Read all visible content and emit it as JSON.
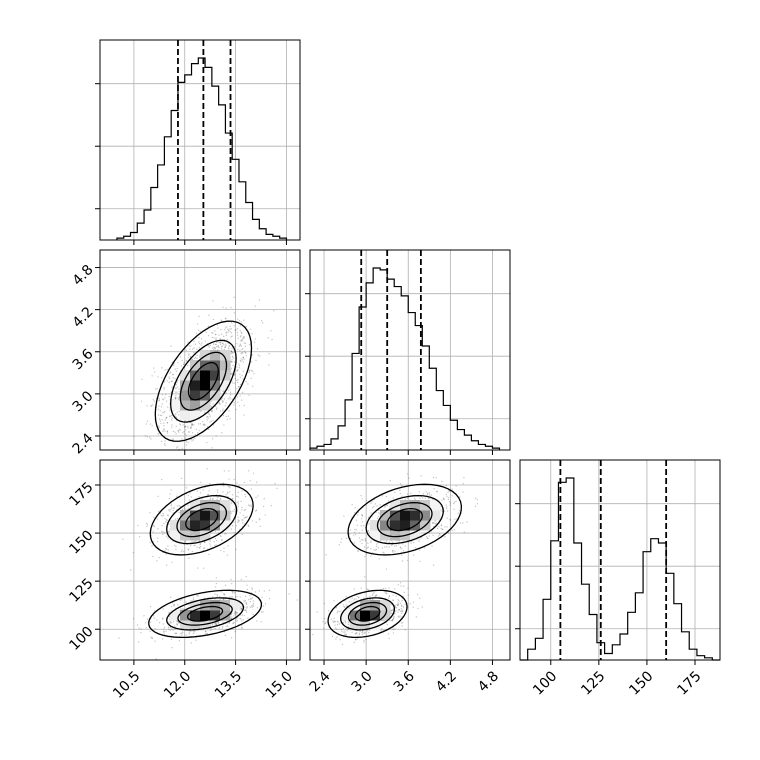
{
  "chart_data": {
    "type": "corner",
    "title": "",
    "grid": true,
    "parameters": [
      {
        "ticks": [
          10.5,
          12.0,
          13.5,
          15.0
        ],
        "tick_labels": [
          "10.5",
          "12.0",
          "13.5",
          "15.0"
        ],
        "range": [
          9.5,
          15.4
        ],
        "quantiles": [
          11.8,
          12.55,
          13.35
        ]
      },
      {
        "ticks": [
          2.4,
          3.0,
          3.6,
          4.2,
          4.8
        ],
        "tick_labels": [
          "2.4",
          "3.0",
          "3.6",
          "4.2",
          "4.8"
        ],
        "range": [
          2.2,
          5.05
        ],
        "quantiles": [
          2.93,
          3.3,
          3.78
        ]
      },
      {
        "ticks": [
          100,
          125,
          150,
          175
        ],
        "tick_labels": [
          "100",
          "125",
          "150",
          "175"
        ],
        "range": [
          84,
          188
        ],
        "quantiles": [
          105,
          126,
          160
        ]
      }
    ],
    "histograms": [
      {
        "bin_edges": [
          10.0,
          10.2,
          10.4,
          10.6,
          10.8,
          11.0,
          11.2,
          11.4,
          11.6,
          11.8,
          12.0,
          12.2,
          12.4,
          12.6,
          12.8,
          13.0,
          13.2,
          13.4,
          13.6,
          13.8,
          14.0,
          14.2,
          14.4,
          14.6,
          14.8,
          15.0
        ],
        "counts": [
          1,
          2,
          4,
          9,
          16,
          28,
          40,
          55,
          69,
          84,
          88,
          94,
          97,
          92,
          82,
          72,
          57,
          43,
          31,
          20,
          11,
          6,
          3,
          2,
          1
        ]
      },
      {
        "bin_edges": [
          2.2,
          2.3,
          2.4,
          2.5,
          2.6,
          2.7,
          2.8,
          2.9,
          3.0,
          3.1,
          3.2,
          3.3,
          3.4,
          3.5,
          3.6,
          3.7,
          3.8,
          3.9,
          4.0,
          4.1,
          4.2,
          4.3,
          4.4,
          4.5,
          4.6,
          4.7,
          4.8,
          4.9
        ],
        "counts": [
          1,
          2,
          3,
          6,
          13,
          27,
          52,
          77,
          90,
          98,
          97,
          92,
          88,
          83,
          74,
          67,
          56,
          44,
          32,
          24,
          16,
          11,
          8,
          5,
          3,
          2,
          1
        ]
      },
      {
        "bin_edges": [
          84,
          88,
          92,
          96,
          100,
          104,
          108,
          112,
          116,
          120,
          124,
          128,
          132,
          136,
          140,
          144,
          148,
          152,
          156,
          160,
          164,
          168,
          172,
          176,
          180,
          184,
          188
        ],
        "counts": [
          0,
          5,
          10,
          28,
          55,
          82,
          84,
          54,
          35,
          21,
          8,
          3,
          7,
          12,
          22,
          31,
          50,
          56,
          54,
          40,
          26,
          13,
          5,
          2,
          1,
          0
        ]
      }
    ],
    "density_panels": [
      {
        "x_param": 0,
        "y_param": 1,
        "modes": [
          {
            "cx": 12.55,
            "cy": 3.18,
            "sx": 0.58,
            "sy": 0.35,
            "rho": 0.55,
            "weight": 1.0
          }
        ]
      },
      {
        "x_param": 0,
        "y_param": 2,
        "modes": [
          {
            "cx": 12.5,
            "cy": 157,
            "sx": 0.62,
            "sy": 7.5,
            "rho": 0.4,
            "weight": 0.5
          },
          {
            "cx": 12.6,
            "cy": 108,
            "sx": 0.68,
            "sy": 5.0,
            "rho": 0.4,
            "weight": 0.5
          }
        ]
      },
      {
        "x_param": 1,
        "y_param": 2,
        "modes": [
          {
            "cx": 3.55,
            "cy": 157,
            "sx": 0.33,
            "sy": 7.5,
            "rho": 0.35,
            "weight": 0.5
          },
          {
            "cx": 3.02,
            "cy": 108,
            "sx": 0.23,
            "sy": 5.0,
            "rho": 0.3,
            "weight": 0.5
          }
        ]
      }
    ],
    "contour_levels": [
      0.25,
      0.5,
      0.75,
      0.95
    ]
  }
}
